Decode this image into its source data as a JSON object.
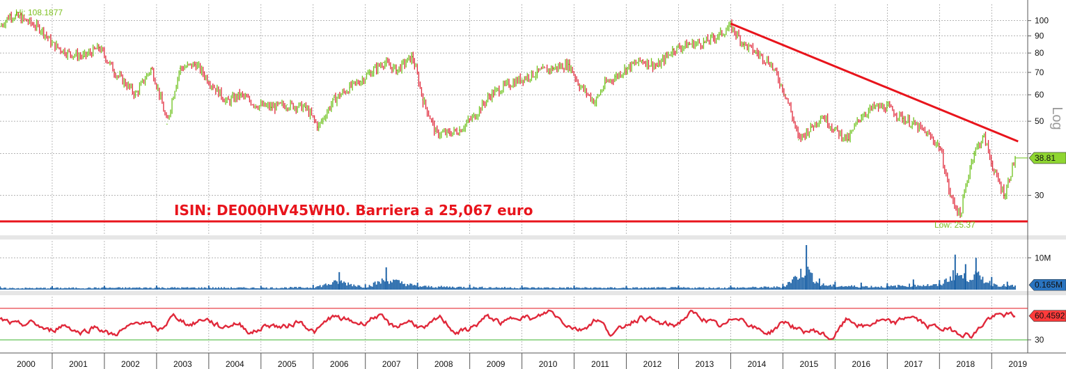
{
  "chart_data": [
    {
      "type": "line",
      "panel": "price",
      "title": "",
      "ylabel": "Log",
      "yscale": "log",
      "ylim": [
        23,
        112
      ],
      "xlim": [
        2000.0,
        2019.45
      ],
      "grid": true,
      "y_ticks": [
        30,
        40,
        50,
        60,
        70,
        80,
        90,
        100
      ],
      "y_tick_labels": [
        "30",
        "",
        "50",
        "60",
        "70",
        "80",
        "90",
        "100"
      ],
      "x_tick_labels": [
        "2000",
        "2001",
        "2002",
        "2003",
        "2004",
        "2005",
        "2006",
        "2007",
        "2008",
        "2009",
        "2010",
        "2011",
        "2012",
        "2013",
        "2014",
        "2015",
        "2016",
        "2017",
        "2018",
        "2019"
      ],
      "hi_label": "Hi: 108.1877",
      "low_label": "Low: 25.37",
      "last_value_label": "38.81",
      "annotation": "ISIN: DE000HV45WH0. Barriera a 25,067 euro",
      "barrier_level": 25.067,
      "trendline": {
        "x": [
          2014.0,
          2019.4
        ],
        "y": [
          98,
          43.5
        ]
      },
      "series": [
        {
          "x": [
            2000.0,
            2000.2,
            2000.5,
            2000.8,
            2001.0,
            2001.3,
            2001.6,
            2001.9,
            2002.2,
            2002.6,
            2002.9,
            2003.2,
            2003.45,
            2003.75,
            2004.0,
            2004.35,
            2004.6,
            2004.9,
            2005.2,
            2005.5,
            2005.85,
            2006.1,
            2006.4,
            2006.7,
            2006.9,
            2007.1,
            2007.35,
            2007.6,
            2007.9,
            2008.1,
            2008.35,
            2008.6,
            2008.8,
            2009.1,
            2009.4,
            2009.7,
            2010.0,
            2010.3,
            2010.6,
            2010.9,
            2011.1,
            2011.4,
            2011.6,
            2011.8,
            2012.0,
            2012.3,
            2012.6,
            2012.9,
            2013.2,
            2013.5,
            2013.8,
            2014.0,
            2014.25,
            2014.5,
            2014.75,
            2015.05,
            2015.3,
            2015.55,
            2015.75,
            2016.0,
            2016.25,
            2016.5,
            2016.75,
            2017.0,
            2017.3,
            2017.5,
            2017.75,
            2018.0,
            2018.2,
            2018.4,
            2018.65,
            2018.85,
            2019.05,
            2019.25,
            2019.45
          ],
          "y": [
            96,
            104,
            100,
            94,
            85,
            80,
            78,
            83,
            70,
            60,
            72,
            49,
            72,
            74,
            66,
            57,
            60,
            56,
            55,
            56,
            55,
            48,
            58,
            63,
            66,
            70,
            75,
            71,
            78,
            58,
            46,
            46,
            47,
            52,
            60,
            64,
            67,
            70,
            72,
            74,
            64,
            57,
            65,
            68,
            72,
            76,
            73,
            82,
            85,
            86,
            91,
            96,
            85,
            80,
            75,
            60,
            44,
            48,
            52,
            47,
            44,
            52,
            55,
            55,
            51,
            49,
            46,
            42,
            30,
            26,
            40,
            45,
            35,
            30,
            38.81
          ]
        }
      ]
    },
    {
      "type": "bar",
      "panel": "volume",
      "title": "",
      "ylabel": "",
      "ylim": [
        0,
        14000000
      ],
      "y_tick_labels": [
        "10M"
      ],
      "last_value_label": "0.165M",
      "x": [
        2000.0,
        2001.0,
        2002.0,
        2003.0,
        2004.0,
        2005.0,
        2006.0,
        2006.5,
        2007.0,
        2007.4,
        2008.0,
        2009.0,
        2010.0,
        2011.0,
        2012.0,
        2013.0,
        2014.0,
        2015.0,
        2015.45,
        2015.7,
        2016.0,
        2016.5,
        2017.0,
        2017.5,
        2018.0,
        2018.3,
        2018.5,
        2018.7,
        2019.0,
        2019.3
      ],
      "values": [
        1000000,
        1100000,
        1200000,
        1300000,
        1300000,
        1200000,
        1500000,
        5500000,
        1700000,
        7000000,
        2200000,
        1600000,
        1300000,
        1300000,
        1200000,
        1300000,
        1300000,
        1800000,
        14000000,
        3500000,
        2500000,
        2200000,
        2000000,
        3200000,
        3000000,
        11000000,
        8000000,
        10000000,
        4000000,
        2500000
      ]
    },
    {
      "type": "line",
      "panel": "rsi",
      "title": "",
      "ylabel": "",
      "ylim": [
        15,
        85
      ],
      "y_tick_labels": [
        "30"
      ],
      "reference_lines": [
        30,
        70
      ],
      "last_value_label": "60.4592",
      "x": [
        2000.0,
        2000.3,
        2000.6,
        2000.9,
        2001.2,
        2001.5,
        2001.8,
        2002.1,
        2002.4,
        2002.7,
        2003.0,
        2003.3,
        2003.6,
        2003.9,
        2004.2,
        2004.5,
        2004.8,
        2005.1,
        2005.4,
        2005.7,
        2006.0,
        2006.3,
        2006.6,
        2006.9,
        2007.2,
        2007.5,
        2007.8,
        2008.1,
        2008.4,
        2008.7,
        2009.0,
        2009.3,
        2009.6,
        2009.9,
        2010.2,
        2010.5,
        2010.8,
        2011.1,
        2011.4,
        2011.7,
        2012.0,
        2012.3,
        2012.6,
        2012.9,
        2013.2,
        2013.5,
        2013.8,
        2014.1,
        2014.4,
        2014.7,
        2015.0,
        2015.3,
        2015.6,
        2015.9,
        2016.2,
        2016.5,
        2016.8,
        2017.1,
        2017.4,
        2017.7,
        2018.0,
        2018.3,
        2018.6,
        2018.9,
        2019.2,
        2019.45
      ],
      "values": [
        55,
        48,
        52,
        40,
        50,
        38,
        48,
        35,
        45,
        55,
        40,
        62,
        48,
        58,
        45,
        52,
        38,
        50,
        45,
        55,
        38,
        60,
        55,
        50,
        62,
        45,
        55,
        42,
        60,
        38,
        45,
        60,
        50,
        62,
        55,
        68,
        50,
        42,
        58,
        35,
        52,
        60,
        50,
        48,
        65,
        55,
        45,
        62,
        45,
        38,
        55,
        40,
        42,
        30,
        58,
        45,
        55,
        50,
        62,
        48,
        45,
        40,
        35,
        58,
        62,
        60.4592
      ]
    }
  ]
}
